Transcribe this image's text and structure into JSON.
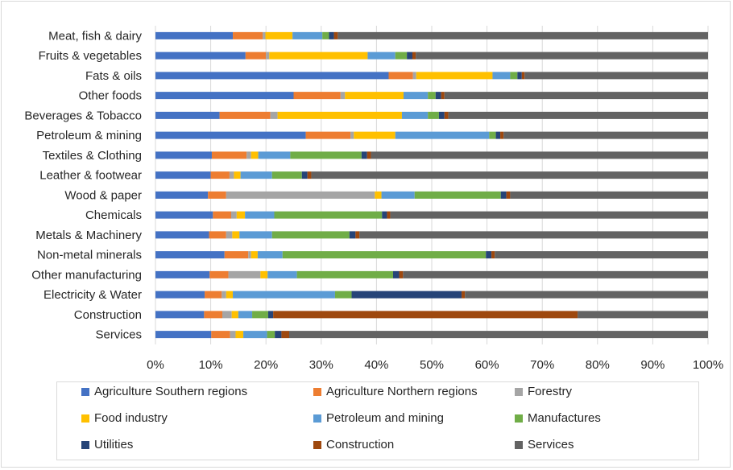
{
  "chart_data": {
    "type": "bar",
    "orientation": "horizontal",
    "stacked": "percent",
    "categories": [
      "Meat, fish & dairy",
      "Fruits & vegetables",
      "Fats & oils",
      "Other foods",
      "Beverages & Tobacco",
      "Petroleum & mining",
      "Textiles & Clothing",
      "Leather & footwear",
      "Wood & paper",
      "Chemicals",
      "Metals & Machinery",
      "Non-metal minerals",
      "Other manufacturing",
      "Electricity & Water",
      "Construction",
      "Services"
    ],
    "series": [
      {
        "name": "Agriculture Southern regions",
        "color": "#4472c4",
        "values": [
          14.0,
          16.3,
          42.2,
          25.0,
          11.6,
          27.2,
          10.2,
          10.0,
          9.5,
          10.4,
          9.7,
          12.5,
          9.8,
          8.9,
          8.8,
          10.1
        ]
      },
      {
        "name": "Agriculture Northern regions",
        "color": "#ed7d31",
        "values": [
          5.4,
          3.7,
          4.4,
          8.5,
          9.2,
          8.1,
          6.3,
          3.4,
          3.3,
          3.3,
          3.1,
          4.3,
          3.4,
          3.1,
          3.3,
          3.4
        ]
      },
      {
        "name": "Forestry",
        "color": "#a5a5a5",
        "values": [
          0.5,
          0.6,
          0.6,
          0.8,
          1.3,
          0.6,
          0.8,
          0.8,
          26.9,
          1.0,
          1.1,
          0.5,
          5.8,
          0.8,
          1.7,
          1.0
        ]
      },
      {
        "name": "Food industry",
        "color": "#ffc000",
        "values": [
          4.9,
          17.8,
          13.8,
          10.6,
          22.5,
          7.5,
          1.3,
          1.2,
          1.2,
          1.5,
          1.3,
          1.2,
          1.3,
          1.2,
          1.2,
          1.4
        ]
      },
      {
        "name": "Petroleum and mining",
        "color": "#5b9bd5",
        "values": [
          5.4,
          5.0,
          3.2,
          4.4,
          4.7,
          17.0,
          5.8,
          5.7,
          6.0,
          5.3,
          5.9,
          4.5,
          5.3,
          18.5,
          2.5,
          4.3
        ]
      },
      {
        "name": "Manufactures",
        "color": "#70ad47",
        "values": [
          1.2,
          2.1,
          1.3,
          1.4,
          2.0,
          1.2,
          12.9,
          5.4,
          15.6,
          19.5,
          14.0,
          36.8,
          17.4,
          3.0,
          2.9,
          1.4
        ]
      },
      {
        "name": "Utilities",
        "color": "#264478",
        "values": [
          0.9,
          1.0,
          0.8,
          1.0,
          1.0,
          0.8,
          1.0,
          1.0,
          1.0,
          0.9,
          1.1,
          1.0,
          1.1,
          19.9,
          0.9,
          1.2
        ]
      },
      {
        "name": "Construction",
        "color": "#9e480e",
        "values": [
          0.7,
          0.6,
          0.5,
          0.6,
          0.7,
          0.6,
          0.7,
          0.7,
          0.7,
          0.6,
          0.7,
          0.6,
          0.7,
          0.6,
          55.1,
          1.4
        ]
      },
      {
        "name": "Services",
        "color": "#636363",
        "values": [
          67.0,
          52.9,
          33.2,
          47.7,
          47.0,
          37.0,
          61.0,
          71.8,
          35.8,
          57.5,
          63.1,
          38.6,
          55.2,
          44.0,
          23.6,
          75.8
        ]
      }
    ],
    "x_ticks": [
      "0%",
      "10%",
      "20%",
      "30%",
      "40%",
      "50%",
      "60%",
      "70%",
      "80%",
      "90%",
      "100%"
    ],
    "xlim": [
      0,
      100
    ],
    "grid": "vertical",
    "legend_position": "bottom",
    "title": "",
    "xlabel": "",
    "ylabel": ""
  }
}
